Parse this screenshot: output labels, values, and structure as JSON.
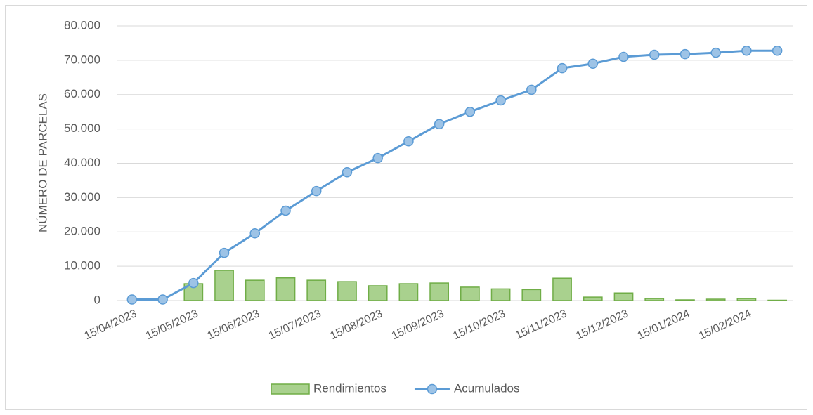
{
  "chart_data": {
    "type": "bar_line",
    "ylabel": "NÚMERO DE PARCELAS",
    "categories": [
      "15/04/2023",
      null,
      "15/05/2023",
      null,
      "15/06/2023",
      null,
      "15/07/2023",
      null,
      "15/08/2023",
      null,
      "15/09/2023",
      null,
      "15/10/2023",
      null,
      "15/11/2023",
      null,
      "15/12/2023",
      null,
      "15/01/2024",
      null,
      "15/02/2024",
      null
    ],
    "series": [
      {
        "name": "Rendimientos",
        "type": "bar",
        "color": "#a9d18e",
        "edge_color": "#70ad47",
        "values": [
          0,
          0,
          4900,
          8800,
          5900,
          6600,
          5900,
          5500,
          4300,
          4900,
          5100,
          3900,
          3400,
          3200,
          6500,
          1000,
          2200,
          600,
          200,
          400,
          600,
          100
        ]
      },
      {
        "name": "Acumulados",
        "type": "line",
        "color": "#5b9bd5",
        "marker_color": "#9dc3e6",
        "values": [
          300,
          300,
          5100,
          13900,
          19600,
          26200,
          31900,
          37400,
          41500,
          46400,
          51400,
          55000,
          58300,
          61400,
          67700,
          69000,
          71000,
          71600,
          71800,
          72200,
          72800,
          72800
        ]
      }
    ],
    "ylim": [
      0,
      80000
    ],
    "yticks": [
      0,
      {
        "value": 10000,
        "label": "10.000"
      },
      {
        "value": 20000,
        "label": "20.000"
      },
      {
        "value": 30000,
        "label": "30.000"
      },
      {
        "value": 40000,
        "label": "40.000"
      },
      {
        "value": 50000,
        "label": "50.000"
      },
      {
        "value": 60000,
        "label": "60.000"
      },
      {
        "value": 70000,
        "label": "70.000"
      },
      {
        "value": 80000,
        "label": "80.000"
      }
    ],
    "grid": true,
    "legend": "bottom"
  }
}
